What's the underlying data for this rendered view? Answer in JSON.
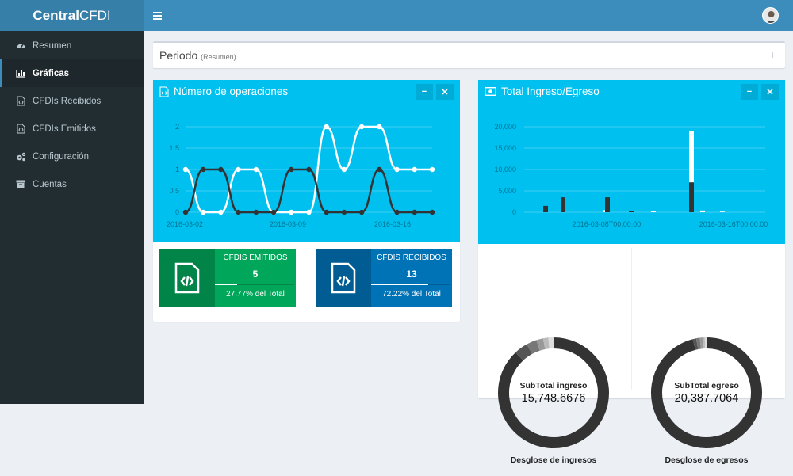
{
  "sidebar": {
    "logo_bold": "Central",
    "logo_rest": "CFDI",
    "items": [
      {
        "label": "Resumen",
        "icon": "dashboard-icon"
      },
      {
        "label": "Gráficas",
        "icon": "bar-chart-icon"
      },
      {
        "label": "CFDIs Recibidos",
        "icon": "file-code-icon"
      },
      {
        "label": "CFDIs Emitidos",
        "icon": "file-code-icon"
      },
      {
        "label": "Configuración",
        "icon": "cogs-icon"
      },
      {
        "label": "Cuentas",
        "icon": "archive-icon"
      }
    ]
  },
  "periodo": {
    "title": "Periodo",
    "subtitle": "(Resumen)"
  },
  "operaciones": {
    "title": "Número de operaciones",
    "emitidos": {
      "label": "CFDIS EMITIDOS",
      "value": "5",
      "percent_text": "27.77% del Total",
      "progress": 0.2777,
      "color": "#00a65a"
    },
    "recibidos": {
      "label": "CFDIS RECIBIDOS",
      "value": "13",
      "percent_text": "72.22% del Total",
      "progress": 0.7222,
      "color": "#0073b7"
    }
  },
  "ingreso_egreso": {
    "title": "Total Ingreso/Egreso"
  },
  "donuts": [
    {
      "title": "SubTotal ingreso",
      "value": "15,748.6676",
      "caption": "Desglose de ingresos"
    },
    {
      "title": "SubTotal egreso",
      "value": "20,387.7064",
      "caption": "Desglose de egresos"
    }
  ],
  "chart_data": [
    {
      "type": "line",
      "x_ticks": [
        "2016-03-02",
        "2016-03-09",
        "2016-03-16"
      ],
      "y_ticks": [
        "0",
        "0.5",
        "1",
        "1.5",
        "2"
      ],
      "ylim": [
        0,
        2
      ],
      "series": [
        {
          "color": "#ffffff",
          "values": [
            1,
            0,
            0,
            1,
            1,
            0,
            0,
            0,
            2,
            1,
            2,
            2,
            1,
            1,
            1
          ]
        },
        {
          "color": "#333333",
          "values": [
            0,
            1,
            1,
            0,
            0,
            0,
            1,
            1,
            0,
            0,
            0,
            1,
            0,
            0,
            0
          ]
        }
      ]
    },
    {
      "type": "bar",
      "x_ticks": [
        "2016-03-08T00:00:00",
        "2016-03-16T00:00:00"
      ],
      "y_ticks": [
        "0",
        "5,000",
        "10,000",
        "15,000",
        "20,000"
      ],
      "ylim": [
        0,
        20000
      ],
      "series": [
        {
          "color": "#ffffff",
          "values": [
            0,
            0,
            500,
            0,
            200,
            19000,
            400,
            150
          ]
        },
        {
          "color": "#333333",
          "values": [
            1500,
            3500,
            3500,
            300,
            0,
            7000,
            0,
            0
          ]
        }
      ]
    },
    {
      "type": "pie",
      "values": [
        88,
        4,
        3,
        2,
        1.5,
        1.5
      ],
      "colors": [
        "#333333",
        "#555555",
        "#777777",
        "#999999",
        "#bbbbbb",
        "#dddddd"
      ]
    },
    {
      "type": "pie",
      "values": [
        96,
        1,
        1,
        1,
        0.5,
        0.5
      ],
      "colors": [
        "#333333",
        "#555555",
        "#777777",
        "#999999",
        "#bbbbbb",
        "#dddddd"
      ]
    }
  ]
}
